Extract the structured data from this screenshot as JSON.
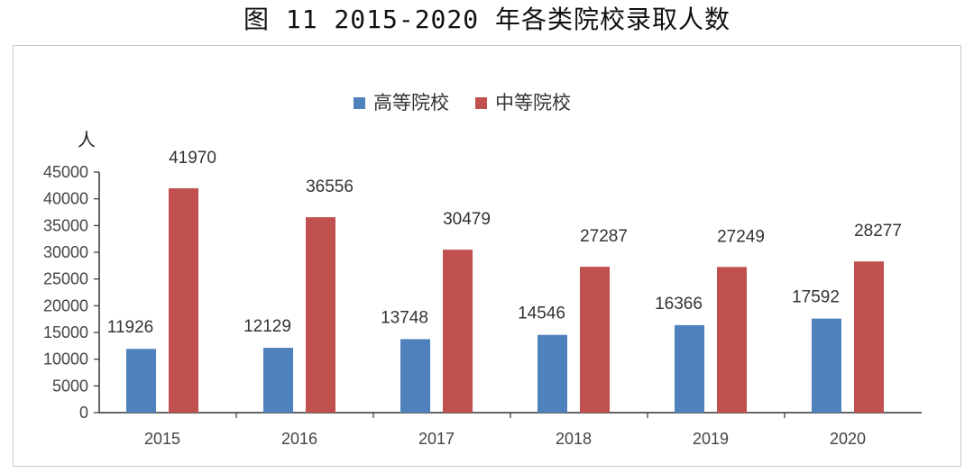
{
  "caption": "图 11    2015-2020 年各类院校录取人数",
  "chart_data": {
    "type": "bar",
    "title": "",
    "ylabel": "人",
    "xlabel": "",
    "ylim": [
      0,
      45000
    ],
    "yticks": [
      0,
      5000,
      10000,
      15000,
      20000,
      25000,
      30000,
      35000,
      40000,
      45000
    ],
    "grid": false,
    "legend_position": "top",
    "categories": [
      "2015",
      "2016",
      "2017",
      "2018",
      "2019",
      "2020"
    ],
    "series": [
      {
        "name": "高等院校",
        "color": "#4f81bd",
        "values": [
          11926,
          12129,
          13748,
          14546,
          16366,
          17592
        ]
      },
      {
        "name": "中等院校",
        "color": "#c0504d",
        "values": [
          41970,
          36556,
          30479,
          27287,
          27249,
          28277
        ]
      }
    ]
  }
}
